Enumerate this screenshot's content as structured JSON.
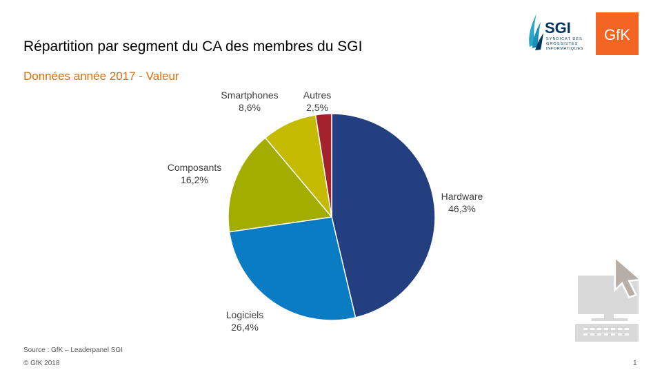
{
  "header": {
    "title": "Répartition par segment du CA des membres du  SGI",
    "subtitle": "Données année 2017 - Valeur",
    "subtitle_color": "#e36c09"
  },
  "logos": {
    "sgi": {
      "name": "SGI",
      "tagline_lines": [
        "SYNDICAT DES",
        "GROSSISTES",
        "INFORMATIQUES"
      ],
      "color": "#00355f",
      "accent": "#2aa6c9"
    },
    "gfk": {
      "name": "GfK",
      "color": "#f26522"
    }
  },
  "chart_data": {
    "type": "pie",
    "title": "Répartition par segment du CA des membres du  SGI",
    "subtitle": "Données année 2017 - Valeur",
    "categories": [
      "Hardware",
      "Logiciels",
      "Composants",
      "Smartphones",
      "Autres"
    ],
    "values": [
      46.3,
      26.4,
      16.2,
      8.6,
      2.5
    ],
    "value_labels": [
      "46,3%",
      "26,4%",
      "16,2%",
      "8,6%",
      "2,5%"
    ],
    "colors": [
      "#243f80",
      "#0a7cc4",
      "#a3ad00",
      "#c4bb00",
      "#a3222c"
    ],
    "start_angle_deg": 0,
    "direction": "clockwise"
  },
  "footer": {
    "source": "Source : GfK – Leaderpanel SGI",
    "copyright": "© GfK 2018",
    "page": "1"
  },
  "decoration": {
    "computer_icon": "computer-cursor-icon",
    "icon_color": "#d9d9d9",
    "cursor_color": "#b7aea8"
  }
}
